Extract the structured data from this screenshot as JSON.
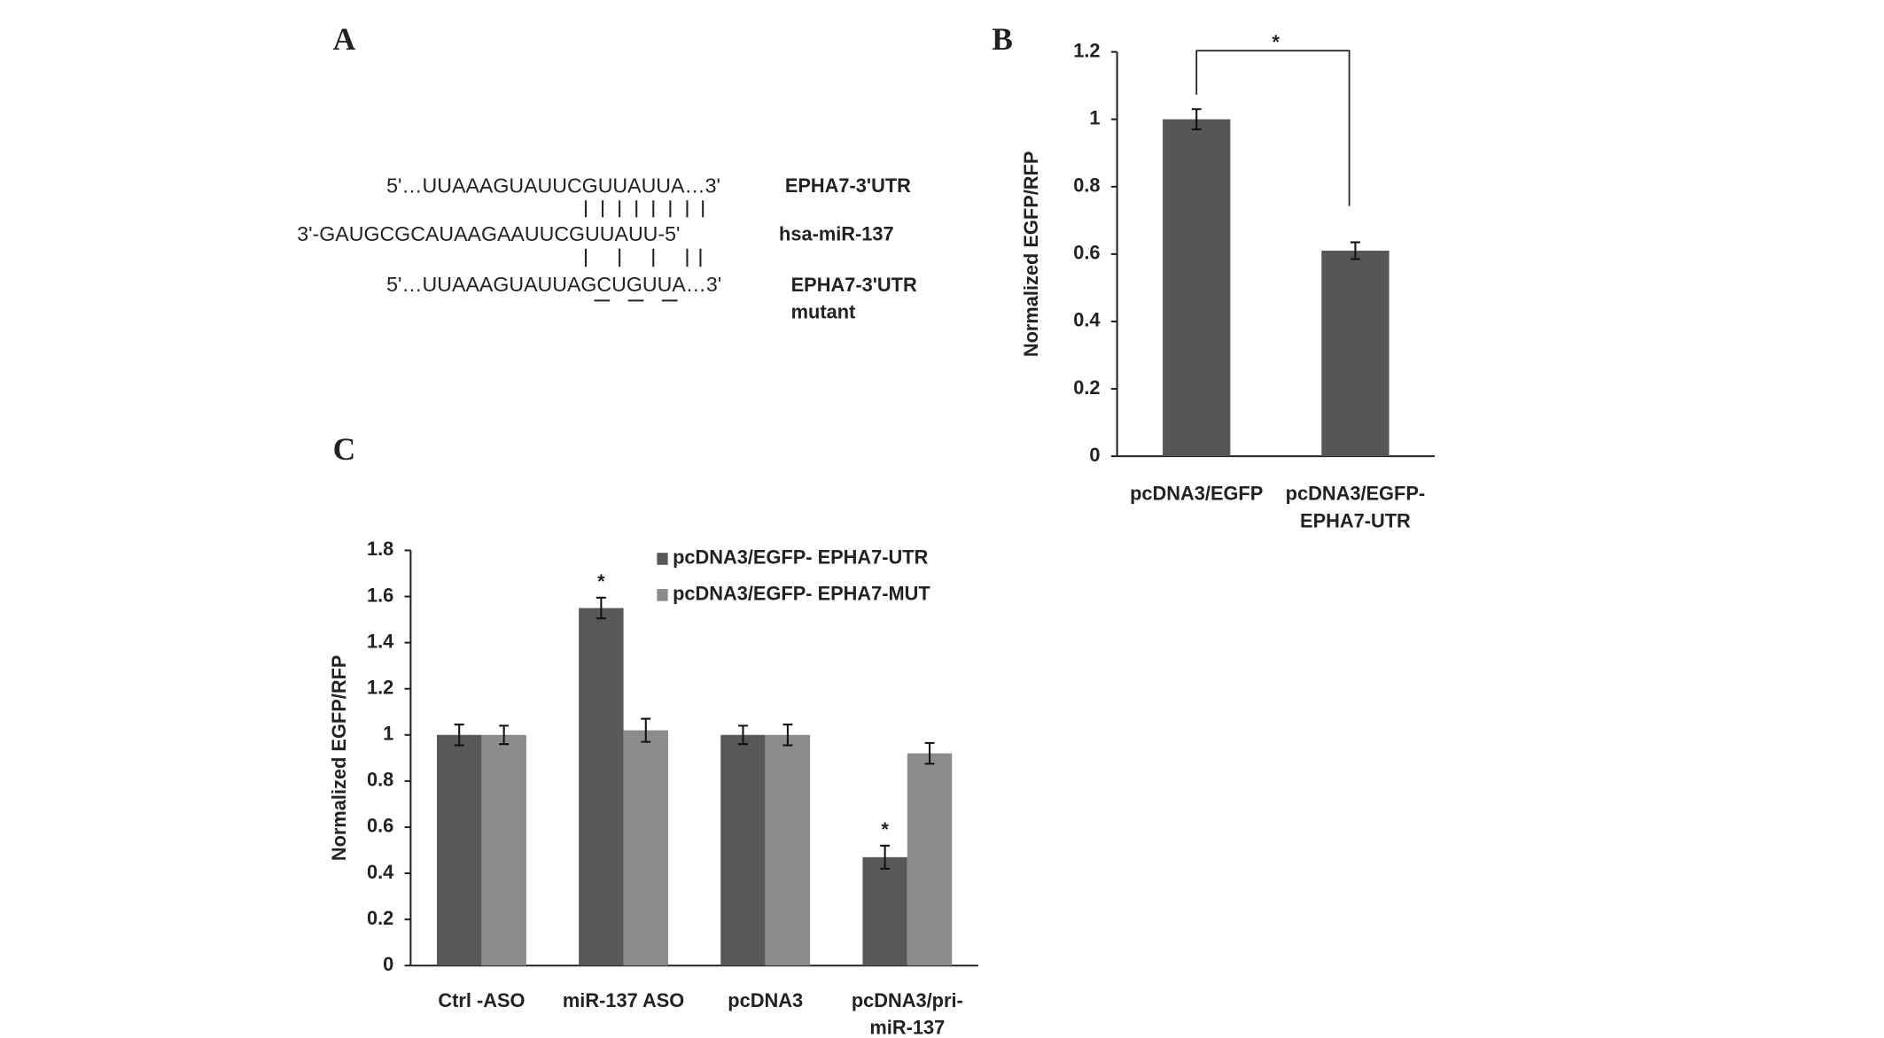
{
  "panel_labels": [
    "A",
    "B",
    "C"
  ],
  "sequences": {
    "rows": [
      {
        "sequence": "5'…UUAAAGUAUUCGUUAUUA…3'",
        "label": "EPHA7-3'UTR"
      },
      {
        "sequence": "3'-GAUGCGCAUAAGAAUUCGUUAUU-5'",
        "label": "hsa-miR-137"
      },
      {
        "sequence": "5'…UUAAAGUAUUAGCUGUUA…3'",
        "label": "EPHA7-3'UTR\nmutant"
      }
    ]
  },
  "chart_data": [
    {
      "type": "bar",
      "ylabel": "Normalized EGFP/RFP",
      "categories": [
        "pcDNA3/EGFP",
        "pcDNA3/EGFP-\nEPHA7-UTR"
      ],
      "values": [
        1.0,
        0.61
      ],
      "errors": [
        0.03,
        0.025
      ],
      "color": "#565656",
      "ylim": [
        0,
        1.2
      ],
      "yticks": [
        0,
        0.2,
        0.4,
        0.6,
        0.8,
        1,
        1.2
      ],
      "annotation": "*"
    },
    {
      "type": "grouped-bar",
      "ylabel": "Normalized EGFP/RFP",
      "categories": [
        "Ctrl -ASO",
        "miR-137 ASO",
        "pcDNA3",
        "pcDNA3/pri-\nmiR-137"
      ],
      "series": [
        {
          "name": "pcDNA3/EGFP- EPHA7-UTR",
          "color": "#585858",
          "values": [
            1.0,
            1.55,
            1.0,
            0.47
          ],
          "errors": [
            0.045,
            0.045,
            0.04,
            0.05
          ]
        },
        {
          "name": "pcDNA3/EGFP- EPHA7-MUT",
          "color": "#8c8c8c",
          "values": [
            1.0,
            1.02,
            1.0,
            0.92
          ],
          "errors": [
            0.04,
            0.05,
            0.045,
            0.045
          ]
        }
      ],
      "ylim": [
        0,
        1.8
      ],
      "yticks": [
        0,
        0.2,
        0.4,
        0.6,
        0.8,
        1,
        1.2,
        1.4,
        1.6,
        1.8
      ],
      "legend": "top-right",
      "annotations": [
        "*",
        "*"
      ]
    }
  ]
}
